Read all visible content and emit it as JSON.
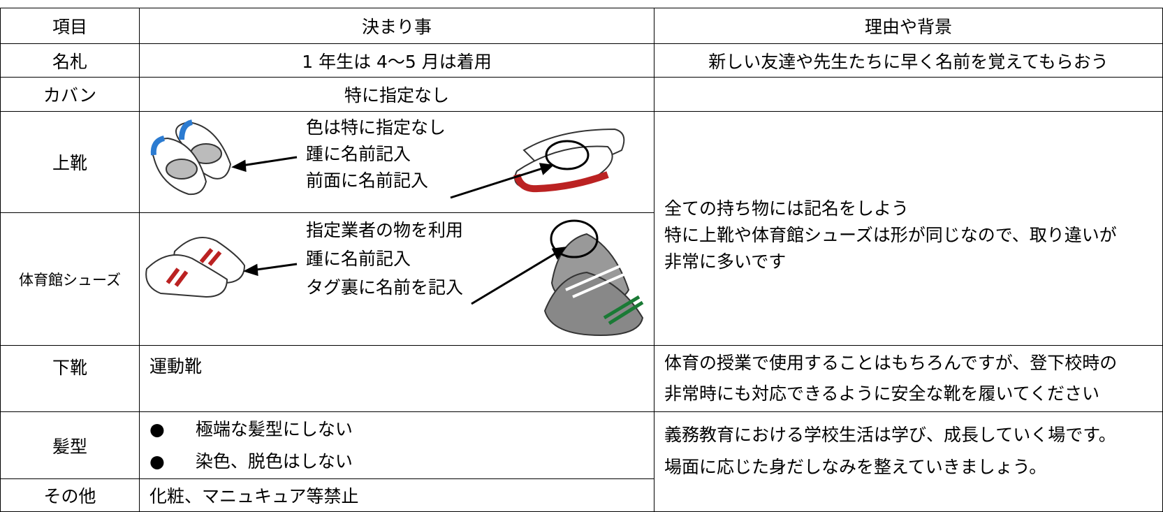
{
  "table": {
    "header": [
      "項目",
      "決まり事",
      "理由や背景"
    ],
    "rows": [
      {
        "item": "名札",
        "rule": [
          "1 年生は 4～5 月は着用"
        ],
        "reason": [
          "新しい友達や先生たちに早く名前を覚えてもらおう"
        ]
      },
      {
        "item": "カバン",
        "rule": [
          "特に指定なし"
        ]
      },
      {
        "item": "上靴",
        "rule": [
          "色は特に指定なし",
          "踵に名前記入",
          "前面に名前記入"
        ],
        "reason": [
          "全ての持ち物には記名をしよう",
          "特に上靴や体育館シューズは形が同じなので、取り違いが",
          "非常に多いです"
        ]
      },
      {
        "item": "体育館シューズ",
        "rule": [
          "指定業者の物を利用",
          "踵に名前記入",
          "タグ裏に名前を記入"
        ]
      },
      {
        "item": "下靴",
        "rule": [
          "運動靴"
        ],
        "reason": [
          "体育の授業で使用することはもちろんですが、登下校時の",
          "非常時にも対応できるように安全な靴を履いてください"
        ]
      },
      {
        "item": "髪型",
        "rule": [
          "極端な髪型にしない",
          "染色、脱色はしない"
        ],
        "reason": [
          "義務教育における学校生活は学び、成長していく場です。",
          "場面に応じた身だしなみを整えていきましょう。"
        ]
      },
      {
        "item": "その他",
        "rule": [
          "化粧、マニュキュア等禁止"
        ]
      }
    ]
  }
}
